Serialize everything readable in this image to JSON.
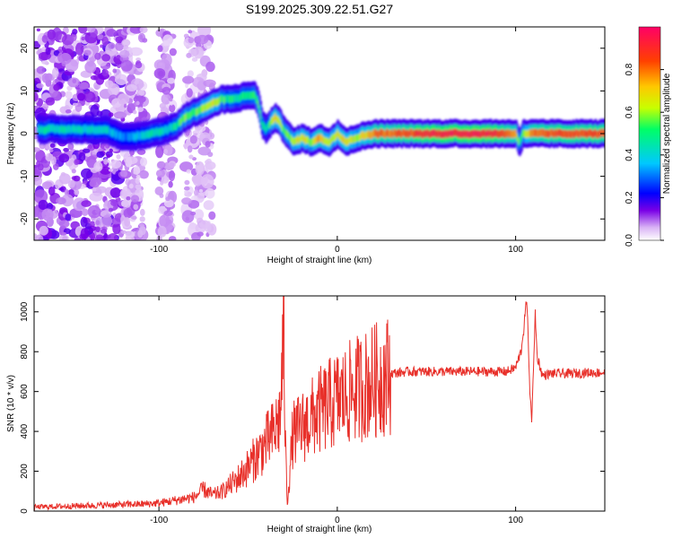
{
  "title": "S199.2025.309.22.51.G27",
  "chart_data": [
    {
      "type": "heatmap",
      "name": "spectrogram",
      "xlabel": "Height of straight line (km)",
      "ylabel": "Frequency (Hz)",
      "xlim": [
        -170,
        150
      ],
      "ylim": [
        -25,
        25
      ],
      "xticks": [
        -100,
        0,
        100
      ],
      "yticks": [
        -20,
        -10,
        0,
        10,
        20
      ],
      "colorbar": {
        "label": "Normalized spectral amplitude",
        "range": [
          0.0,
          1.0
        ],
        "ticks": [
          "0.0",
          "0.2",
          "0.4",
          "0.6",
          "0.8"
        ],
        "colors": [
          "#ffffff",
          "#d9b3f5",
          "#7a00e6",
          "#0000ff",
          "#00c8ff",
          "#00ff66",
          "#c8ff00",
          "#ffc800",
          "#ff4000",
          "#ff0066"
        ]
      },
      "ridge": {
        "x": [
          -168,
          -150,
          -130,
          -120,
          -110,
          -100,
          -95,
          -90,
          -85,
          -80,
          -75,
          -70,
          -65,
          -60,
          -55,
          -50,
          -47,
          -45,
          -42,
          -40,
          -35,
          -30,
          -25,
          -20,
          -15,
          -10,
          -5,
          0,
          5,
          10,
          20,
          40,
          60,
          80,
          90,
          97,
          100,
          102,
          104,
          110,
          120,
          130,
          150
        ],
        "y": [
          1,
          1,
          1,
          -1,
          -0.5,
          0.5,
          1,
          2,
          4,
          5,
          6,
          7,
          8,
          8,
          8.5,
          9,
          9,
          8,
          2,
          1,
          4,
          1,
          -2,
          -1,
          -2,
          -1,
          -2,
          0,
          -2,
          -1,
          0,
          0,
          0,
          0,
          0,
          0,
          0,
          -2,
          0,
          0,
          0,
          0,
          0
        ],
        "amplitude": [
          0.45,
          0.45,
          0.4,
          0.3,
          0.4,
          0.45,
          0.4,
          0.5,
          0.6,
          0.55,
          0.6,
          0.65,
          0.55,
          0.5,
          0.45,
          0.5,
          0.5,
          0.55,
          0.5,
          0.4,
          0.7,
          0.55,
          0.6,
          0.7,
          0.6,
          0.75,
          0.6,
          0.7,
          0.7,
          0.6,
          0.8,
          0.85,
          0.95,
          0.95,
          0.9,
          0.8,
          0.75,
          0.5,
          0.6,
          0.8,
          0.85,
          0.85,
          0.85
        ]
      }
    },
    {
      "type": "line",
      "name": "snr",
      "xlabel": "Height of straight line (km)",
      "ylabel": "SNR (10 * v/v)",
      "xlim": [
        -170,
        150
      ],
      "ylim": [
        0,
        1080
      ],
      "xticks": [
        -100,
        0,
        100
      ],
      "yticks": [
        0,
        200,
        400,
        600,
        800,
        1000
      ],
      "color": "#e8302a",
      "series": [
        {
          "name": "SNR",
          "x": [
            -170,
            -150,
            -130,
            -110,
            -100,
            -90,
            -80,
            -75,
            -70,
            -65,
            -60,
            -55,
            -50,
            -45,
            -40,
            -35,
            -32,
            -30,
            -29,
            -28,
            -25,
            -20,
            -15,
            -10,
            -5,
            0,
            5,
            10,
            15,
            20,
            25,
            30,
            40,
            60,
            80,
            95,
            100,
            103,
            105,
            106,
            107,
            108,
            109,
            110,
            111,
            112,
            115,
            120,
            130,
            140,
            150
          ],
          "y": [
            20,
            25,
            30,
            35,
            40,
            55,
            70,
            110,
            80,
            95,
            130,
            170,
            220,
            280,
            340,
            400,
            480,
            930,
            300,
            40,
            380,
            420,
            460,
            500,
            530,
            560,
            580,
            610,
            630,
            650,
            670,
            690,
            700,
            700,
            700,
            700,
            720,
            800,
            950,
            1060,
            900,
            600,
            460,
            700,
            1000,
            780,
            680,
            690,
            690,
            695,
            695
          ]
        }
      ]
    }
  ]
}
